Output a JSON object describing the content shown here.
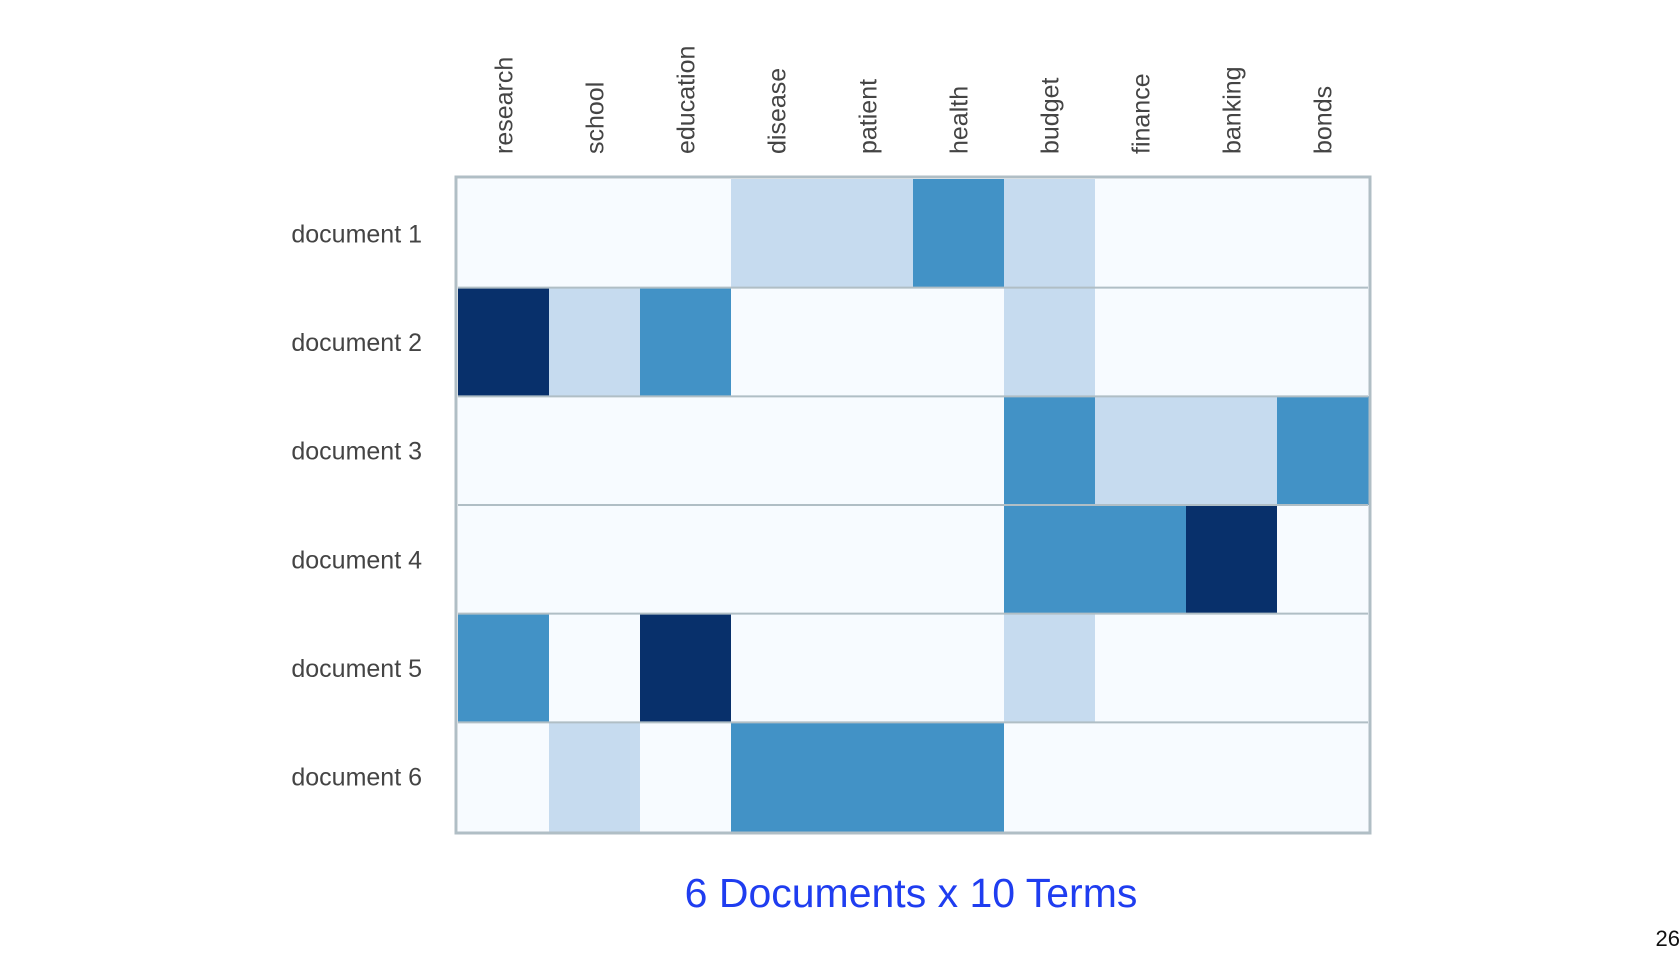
{
  "chart_data": {
    "type": "heatmap",
    "title": "6 Documents x 10 Terms",
    "columns": [
      "research",
      "school",
      "education",
      "disease",
      "patient",
      "health",
      "budget",
      "finance",
      "banking",
      "bonds"
    ],
    "rows": [
      "document 1",
      "document 2",
      "document 3",
      "document 4",
      "document 5",
      "document 6"
    ],
    "values": [
      [
        0,
        0,
        0,
        1,
        1,
        2,
        1,
        0,
        0,
        0
      ],
      [
        3,
        1,
        2,
        0,
        0,
        0,
        1,
        0,
        0,
        0
      ],
      [
        0,
        0,
        0,
        0,
        0,
        0,
        2,
        1,
        1,
        2
      ],
      [
        0,
        0,
        0,
        0,
        0,
        0,
        2,
        2,
        3,
        0
      ],
      [
        2,
        0,
        3,
        0,
        0,
        0,
        1,
        0,
        0,
        0
      ],
      [
        0,
        1,
        0,
        2,
        2,
        2,
        0,
        0,
        0,
        0
      ]
    ],
    "color_levels": [
      "#f7fbff",
      "#c6dbef",
      "#4292c6",
      "#08306b"
    ],
    "frame_color": "#b0bec5",
    "legend": "none"
  },
  "page_number": "26"
}
